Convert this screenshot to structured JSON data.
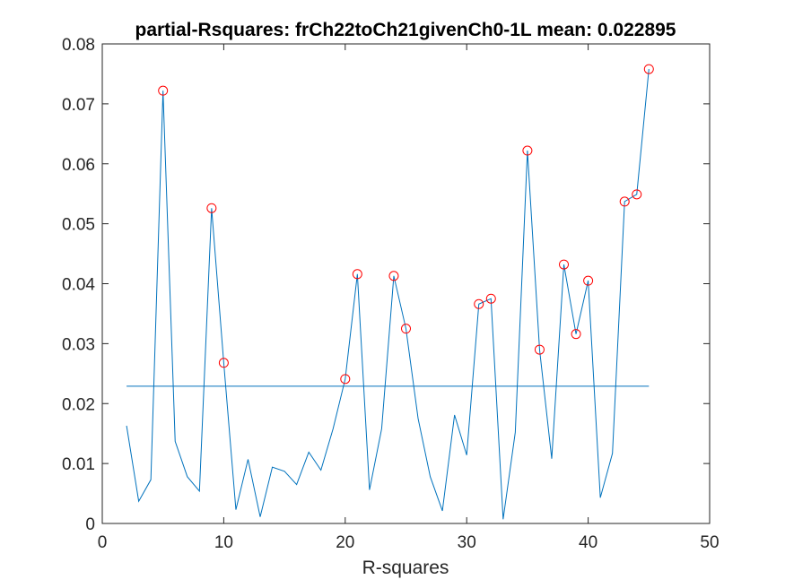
{
  "chart_data": {
    "type": "line",
    "title": "partial-Rsquares: frCh22toCh21givenCh0-1L mean: 0.022895",
    "xlabel": "R-squares",
    "ylabel": "",
    "xlim": [
      0,
      50
    ],
    "ylim": [
      0,
      0.08
    ],
    "xticks": [
      "0",
      "10",
      "20",
      "30",
      "40",
      "50"
    ],
    "yticks": [
      "0",
      "0.01",
      "0.02",
      "0.03",
      "0.04",
      "0.05",
      "0.06",
      "0.07",
      "0.08"
    ],
    "grid": false,
    "series": [
      {
        "x": [
          2,
          3,
          4,
          5,
          6,
          7,
          8,
          9,
          10,
          11,
          12,
          13,
          14,
          15,
          16,
          17,
          18,
          19,
          20,
          21,
          22,
          23,
          24,
          25,
          26,
          27,
          28,
          29,
          30,
          31,
          32,
          33,
          34,
          35,
          36,
          37,
          38,
          39,
          40,
          41,
          42,
          43,
          44,
          45
        ],
        "values": [
          0.0163,
          0.0037,
          0.0073,
          0.0722,
          0.0137,
          0.0078,
          0.0054,
          0.0526,
          0.0268,
          0.0023,
          0.0107,
          0.0011,
          0.0094,
          0.0087,
          0.0065,
          0.0119,
          0.0089,
          0.0158,
          0.0241,
          0.0416,
          0.0056,
          0.0158,
          0.0413,
          0.0325,
          0.0175,
          0.0078,
          0.0021,
          0.0181,
          0.0114,
          0.0366,
          0.0375,
          0.0007,
          0.0152,
          0.0622,
          0.029,
          0.0108,
          0.0432,
          0.0316,
          0.0405,
          0.0043,
          0.0117,
          0.0537,
          0.0549,
          0.0758
        ],
        "color": "#0072bd"
      }
    ],
    "highlighted_points": {
      "marker": "circle",
      "color": "#ff0000",
      "x": [
        5,
        9,
        10,
        20,
        21,
        24,
        25,
        31,
        32,
        35,
        36,
        38,
        39,
        40,
        43,
        44,
        45
      ],
      "values": [
        0.0722,
        0.0526,
        0.0268,
        0.0241,
        0.0416,
        0.0413,
        0.0325,
        0.0366,
        0.0375,
        0.0622,
        0.029,
        0.0432,
        0.0316,
        0.0405,
        0.0537,
        0.0549,
        0.0758
      ]
    },
    "mean_line": {
      "value": 0.022895,
      "x_range": [
        2,
        45
      ],
      "color": "#0072bd"
    }
  }
}
